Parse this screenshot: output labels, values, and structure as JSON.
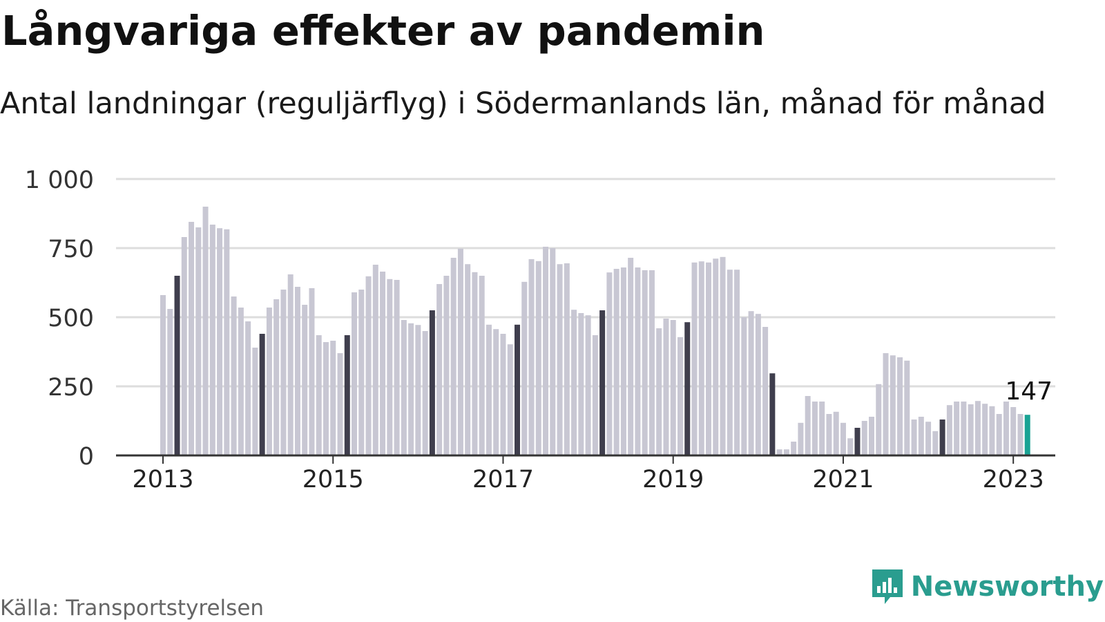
{
  "title": "Långvariga effekter av pandemin",
  "subtitle": "Antal landningar (reguljärflyg) i Södermanlands län, månad för månad",
  "source": "Källa: Transportstyrelsen",
  "brand": {
    "name": "Newsworthy",
    "icon": "newsworthy-logo-icon"
  },
  "colors": {
    "bar_default": "#c8c7d3",
    "bar_march": "#3f3e4d",
    "bar_latest": "#1aa394",
    "grid": "#dddddd",
    "axis": "#333333",
    "brand": "#2a9d8f"
  },
  "chart_data": {
    "type": "bar",
    "ylim": [
      0,
      1000
    ],
    "yticks": [
      0,
      250,
      500,
      750,
      1000
    ],
    "ytick_labels": [
      "0",
      "250",
      "500",
      "750",
      "1 000"
    ],
    "xtick_labels": [
      "2013",
      "2015",
      "2017",
      "2019",
      "2021",
      "2023"
    ],
    "highlight_month": 3,
    "latest_label": "147",
    "series": [
      {
        "start": "2013-01",
        "values": [
          580,
          530,
          650,
          790,
          845,
          825,
          900,
          835,
          822,
          818,
          575,
          535,
          485,
          390,
          440,
          535,
          565,
          600,
          655,
          610,
          545,
          605,
          435,
          410,
          415,
          370,
          435,
          590,
          600,
          648,
          690,
          665,
          638,
          635,
          490,
          478,
          472,
          450,
          525,
          620,
          650,
          715,
          748,
          692,
          663,
          650,
          473,
          457,
          440,
          402,
          473,
          628,
          710,
          703,
          755,
          750,
          692,
          695,
          527,
          515,
          507,
          435,
          525,
          662,
          675,
          680,
          715,
          680,
          670,
          670,
          460,
          495,
          490,
          428,
          482,
          698,
          702,
          698,
          712,
          718,
          672,
          672,
          500,
          522,
          512,
          465,
          297,
          22,
          22,
          50,
          118,
          215,
          195,
          195,
          150,
          158,
          118,
          62,
          100,
          125,
          140,
          258,
          370,
          362,
          355,
          343,
          130,
          140,
          122,
          88,
          130,
          182,
          195,
          195,
          185,
          197,
          187,
          178,
          150,
          195,
          175,
          150,
          147
        ]
      }
    ]
  }
}
